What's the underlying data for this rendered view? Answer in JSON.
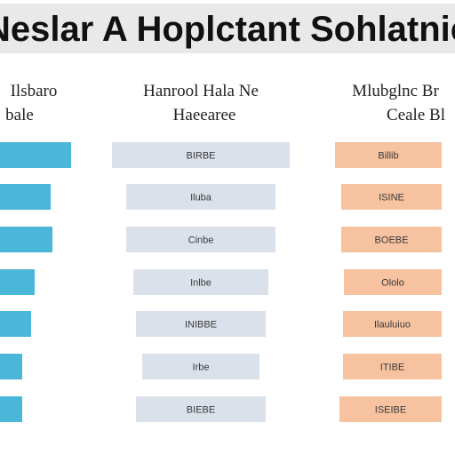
{
  "title": "Neslar A Hoplctant Sohlatnic",
  "colors": {
    "title_bar": "#e9e9e9",
    "col1_bar": "#4ab6d8",
    "col2_bar": "#dbe1ea",
    "col3_bar": "#f6c29f"
  },
  "chart_data": {
    "type": "bar",
    "title": "Neslar A Hoplctant Sohlatnic",
    "groups": [
      {
        "header_line1": "Ilsbaro",
        "header_line2": "bale",
        "values": [
          80,
          57,
          59,
          39,
          35,
          25,
          25
        ],
        "labels": []
      },
      {
        "header_line1": "Hanrool Hala Ne",
        "header_line2": "Haeearee",
        "values": [
          200,
          168,
          168,
          152,
          146,
          132,
          146
        ],
        "labels": [
          "BIRBE",
          "Iluba",
          "Cinbe",
          "Inlbe",
          "INIBBE",
          "Irbe",
          "BIEBE"
        ]
      },
      {
        "header_line1": "Mlubglnc Br",
        "header_line2": "Ceale Bl",
        "values": [
          120,
          113,
          113,
          110,
          111,
          111,
          115
        ],
        "labels": [
          "Billib",
          "ISINE",
          "BOEBE",
          "Ololo",
          "Ilauluiuo",
          "ITIBE",
          "ISEIBE"
        ]
      }
    ]
  }
}
